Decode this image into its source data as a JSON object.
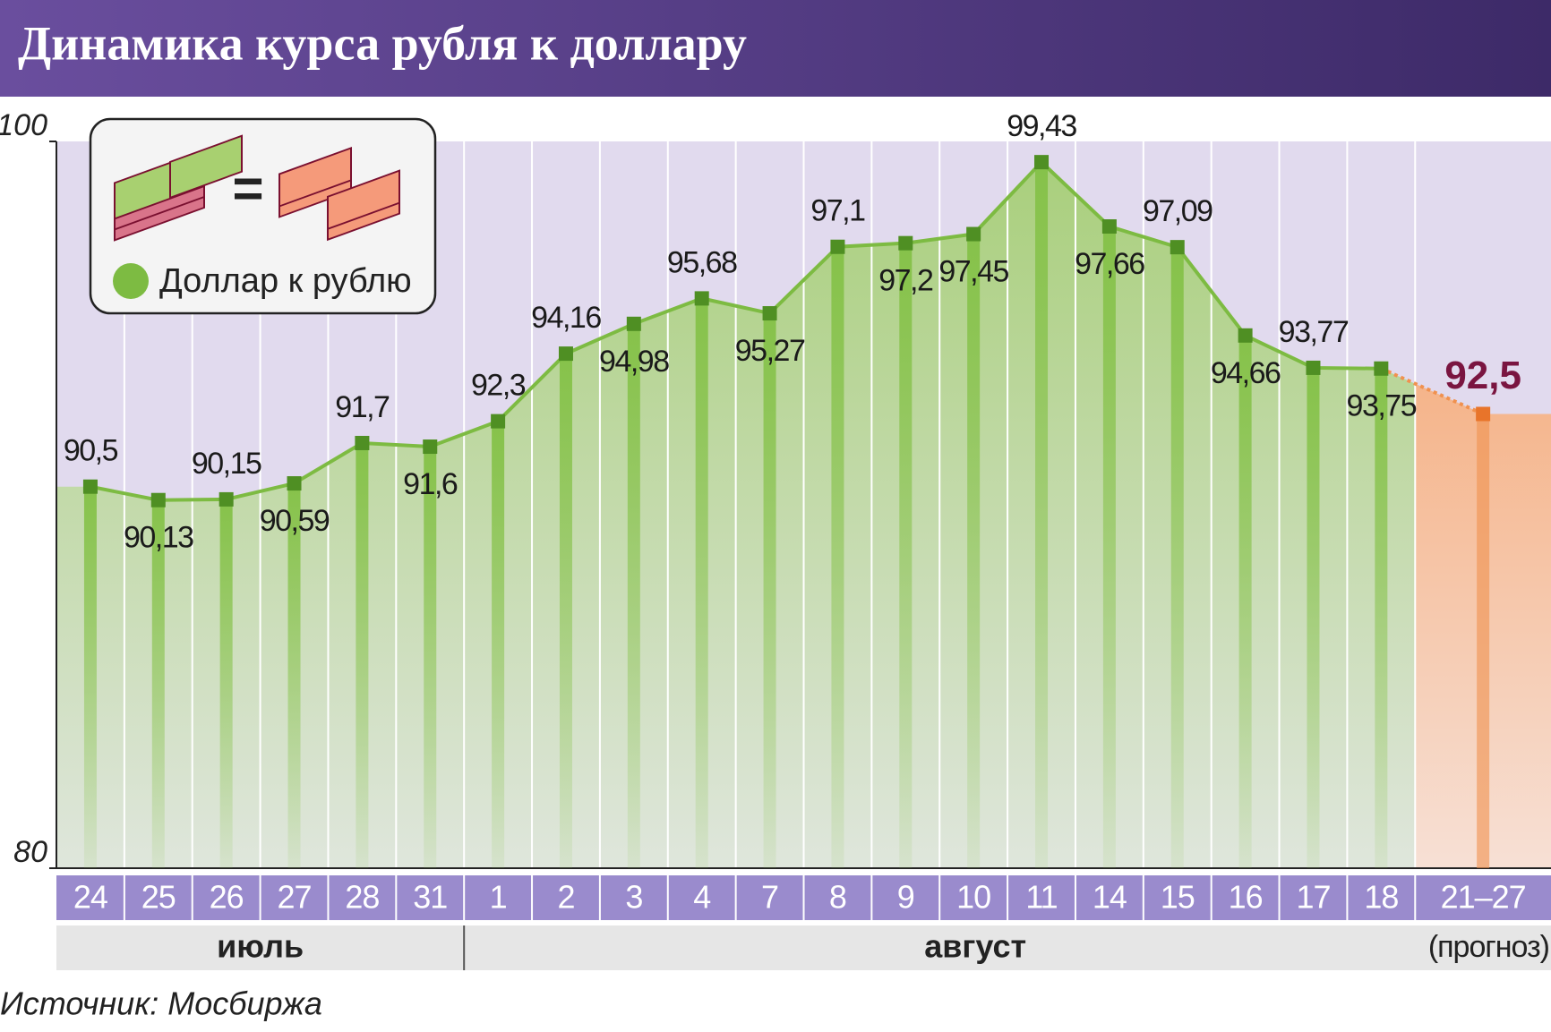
{
  "chart_data": {
    "type": "line",
    "title": "Динамика курса рубля к доллару",
    "categories": [
      "24",
      "25",
      "26",
      "27",
      "28",
      "31",
      "1",
      "2",
      "3",
      "4",
      "7",
      "8",
      "9",
      "10",
      "11",
      "14",
      "15",
      "16",
      "17",
      "18",
      "21–27"
    ],
    "series": [
      {
        "name": "Доллар к рублю",
        "color": "#7dbb42",
        "values": [
          90.5,
          90.13,
          90.15,
          90.59,
          91.7,
          91.6,
          92.3,
          94.16,
          94.98,
          95.68,
          95.27,
          97.1,
          97.2,
          97.45,
          99.43,
          97.66,
          97.09,
          94.66,
          93.77,
          93.75,
          null
        ],
        "value_labels": [
          "90,5",
          "90,13",
          "90,15",
          "90,59",
          "91,7",
          "91,6",
          "92,3",
          "94,16",
          "94,98",
          "95,68",
          "95,27",
          "97,1",
          "97,2",
          "97,45",
          "99,43",
          "97,66",
          "97,09",
          "94,66",
          "93,77",
          "93,75",
          null
        ]
      }
    ],
    "forecast": {
      "value": 92.5,
      "value_label": "92,5",
      "label": "(прогноз)",
      "color": "#f0914f"
    },
    "months": [
      "июль",
      "август"
    ],
    "ylim": [
      80,
      100
    ],
    "yticks": [
      80,
      100
    ],
    "source": "Источник: Мосбиржа"
  }
}
